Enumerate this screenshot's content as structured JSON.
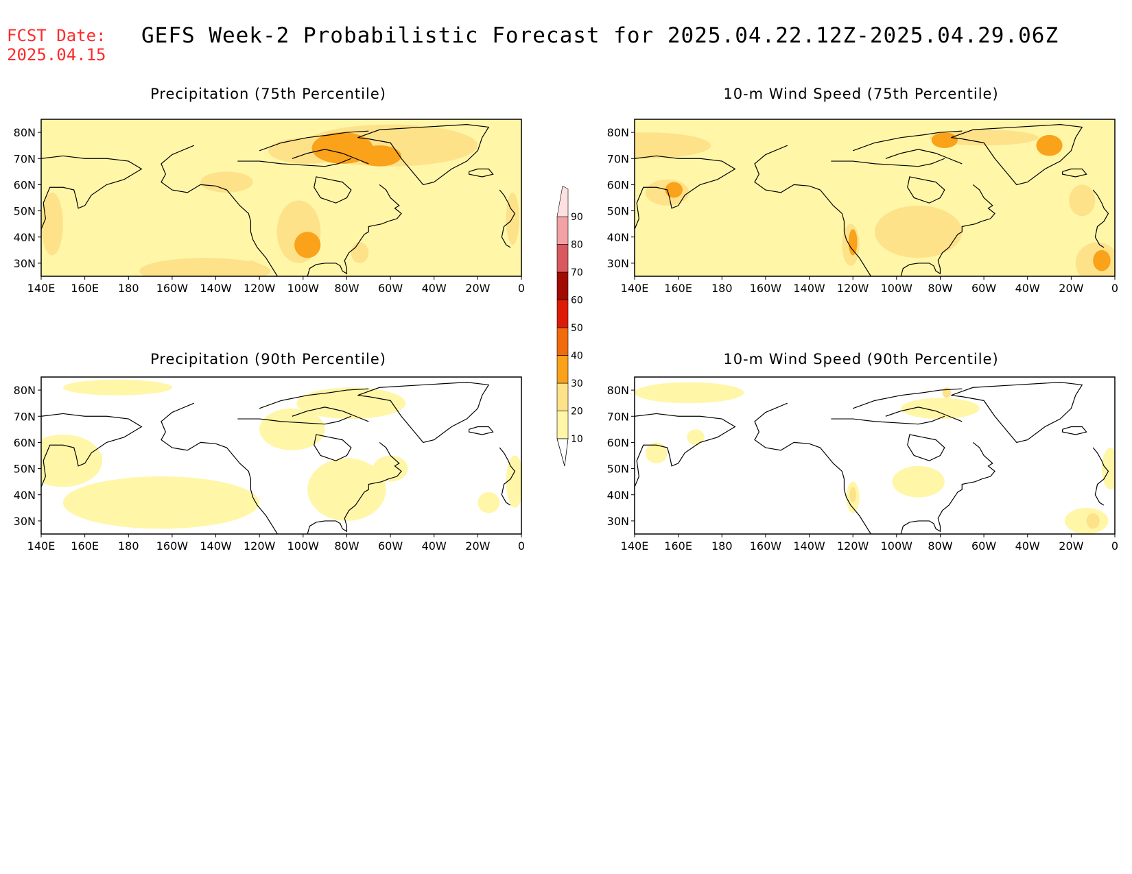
{
  "header": {
    "fcst_label": "FCST Date:",
    "fcst_date": "2025.04.15",
    "title": "GEFS Week-2 Probabilistic Forecast for 2025.04.22.12Z-2025.04.29.06Z"
  },
  "panels": [
    {
      "title": "Precipitation (75th Percentile)",
      "field": "precip75"
    },
    {
      "title": "10-m Wind Speed (75th Percentile)",
      "field": "wind75"
    },
    {
      "title": "Precipitation (90th Percentile)",
      "field": "precip90"
    },
    {
      "title": "10-m Wind Speed (90th Percentile)",
      "field": "wind90"
    }
  ],
  "axes": {
    "lat_labels": [
      "80N",
      "70N",
      "60N",
      "50N",
      "40N",
      "30N"
    ],
    "lat_values": [
      80,
      70,
      60,
      50,
      40,
      30
    ],
    "lat_range": [
      25,
      85
    ],
    "lon_labels": [
      "140E",
      "160E",
      "180",
      "160W",
      "140W",
      "120W",
      "100W",
      "80W",
      "60W",
      "40W",
      "20W",
      "0"
    ],
    "lon_values": [
      140,
      160,
      180,
      200,
      220,
      240,
      260,
      280,
      300,
      320,
      340,
      360
    ],
    "lon_range": [
      140,
      360
    ]
  },
  "colorbar": {
    "levels": [
      10,
      20,
      30,
      40,
      50,
      60,
      70,
      80,
      90
    ],
    "labels": [
      "10",
      "20",
      "30",
      "40",
      "50",
      "60",
      "70",
      "80",
      "90"
    ],
    "colors": [
      "#fff6a8",
      "#fde28a",
      "#f9a21a",
      "#f16a0c",
      "#dd1c07",
      "#a10b02",
      "#d9595f",
      "#f2a1a4",
      "#fde0e0"
    ]
  },
  "fields": {
    "precip75": {
      "base_level": 1,
      "blobs": [
        [
          300,
          75,
          40,
          8,
          2
        ],
        [
          278,
          74,
          14,
          6,
          3
        ],
        [
          295,
          71,
          10,
          4,
          3
        ],
        [
          258,
          42,
          10,
          12,
          2
        ],
        [
          262,
          37,
          6,
          5,
          3
        ],
        [
          215,
          27,
          30,
          5,
          2
        ],
        [
          145,
          45,
          5,
          12,
          2
        ],
        [
          356,
          47,
          3,
          10,
          2
        ],
        [
          225,
          61,
          12,
          4,
          2
        ],
        [
          262,
          73,
          18,
          5,
          2
        ],
        [
          236,
          28,
          4,
          3,
          2
        ],
        [
          286,
          34,
          4,
          4,
          2
        ]
      ]
    },
    "wind75": {
      "base_level": 1,
      "blobs": [
        [
          145,
          75,
          30,
          5,
          2
        ],
        [
          155,
          57,
          10,
          5,
          2
        ],
        [
          158,
          58,
          4,
          3,
          3
        ],
        [
          239,
          37,
          4,
          8,
          2
        ],
        [
          240,
          38,
          2,
          5,
          3
        ],
        [
          352,
          30,
          10,
          8,
          2
        ],
        [
          354,
          31,
          4,
          4,
          3
        ],
        [
          300,
          78,
          25,
          3,
          2
        ],
        [
          330,
          75,
          6,
          4,
          3
        ],
        [
          282,
          77,
          6,
          3,
          3
        ],
        [
          345,
          54,
          6,
          6,
          2
        ],
        [
          270,
          42,
          20,
          10,
          2
        ]
      ]
    },
    "precip90": {
      "base_level": 0,
      "blobs": [
        [
          150,
          53,
          18,
          10,
          1
        ],
        [
          195,
          37,
          45,
          10,
          1
        ],
        [
          280,
          42,
          18,
          12,
          1
        ],
        [
          282,
          75,
          25,
          6,
          1
        ],
        [
          255,
          65,
          15,
          8,
          1
        ],
        [
          300,
          50,
          8,
          5,
          1
        ],
        [
          175,
          81,
          25,
          3,
          1
        ],
        [
          357,
          45,
          4,
          10,
          1
        ],
        [
          345,
          37,
          5,
          4,
          1
        ]
      ]
    },
    "wind90": {
      "base_level": 0,
      "blobs": [
        [
          165,
          79,
          25,
          4,
          1
        ],
        [
          240,
          39,
          3,
          6,
          1
        ],
        [
          240,
          40,
          1.5,
          3,
          2
        ],
        [
          347,
          30,
          10,
          5,
          1
        ],
        [
          350,
          30,
          3,
          3,
          2
        ],
        [
          358,
          50,
          4,
          8,
          1
        ],
        [
          280,
          73,
          18,
          4,
          1
        ],
        [
          283,
          79,
          2,
          2,
          2
        ],
        [
          270,
          45,
          12,
          6,
          1
        ],
        [
          150,
          56,
          5,
          4,
          1
        ],
        [
          168,
          62,
          4,
          3,
          1
        ]
      ]
    }
  }
}
